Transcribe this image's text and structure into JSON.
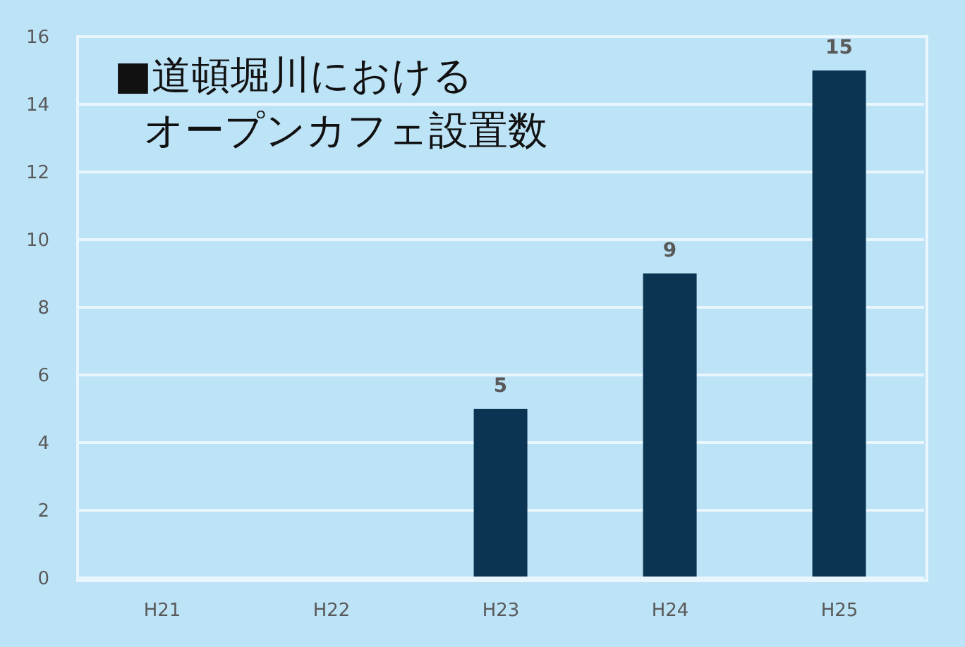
{
  "chart_data": {
    "type": "bar",
    "title": "■道頓堀川におけるオープンカフェ設置数",
    "categories": [
      "H21",
      "H22",
      "H23",
      "H24",
      "H25"
    ],
    "values": [
      0,
      0,
      5,
      9,
      15
    ],
    "color": "#0b3452",
    "value_labels": [
      null,
      null,
      "5",
      "9",
      "15"
    ],
    "ylim": [
      0,
      16
    ],
    "yticks": [
      0,
      2,
      4,
      6,
      8,
      10,
      12,
      14,
      16
    ],
    "grid": "y"
  }
}
